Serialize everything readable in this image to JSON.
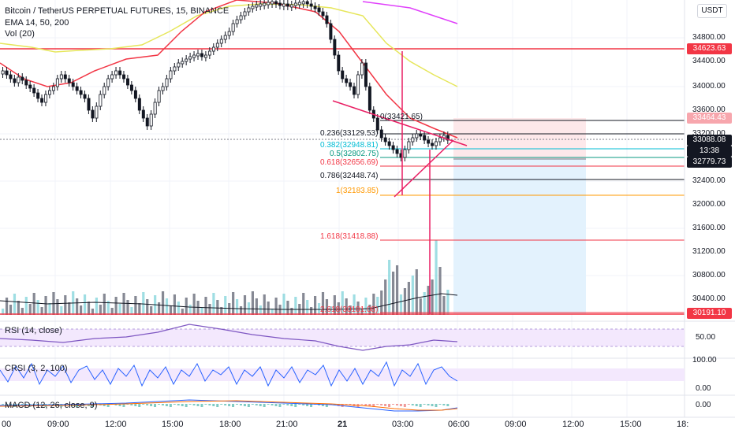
{
  "header": {
    "title": "Bitcoin / TetherUS PERPETUAL FUTURES, 15, BINANCE",
    "ema_label": "EMA 14, 50, 200",
    "vol_label": "Vol (20)",
    "currency_button": "USDT"
  },
  "price_axis": {
    "ticks": [
      "34800.00",
      "34400.00",
      "34000.00",
      "33600.00",
      "33200.00",
      "32800.00",
      "32400.00",
      "32000.00",
      "31600.00",
      "31200.00",
      "30800.00",
      "30400.00"
    ],
    "tags": [
      {
        "label": "34623.63",
        "color": "#f23645"
      },
      {
        "label": "33464.43",
        "color": "#f7a6ad"
      },
      {
        "label": "33088.08",
        "color": "#131722"
      },
      {
        "label": "13:38",
        "color": "#131722"
      },
      {
        "label": "32779.73",
        "color": "#131722"
      },
      {
        "label": "30191.10",
        "color": "#f23645"
      }
    ]
  },
  "fib_levels": [
    {
      "label": "0(33421.65)",
      "color": "#131722"
    },
    {
      "label": "0.236(33129.53)",
      "color": "#131722"
    },
    {
      "label": "0.382(32948.81)",
      "color": "#00bcd4"
    },
    {
      "label": "0.5(32802.75)",
      "color": "#089981"
    },
    {
      "label": "0.618(32656.69)",
      "color": "#f23645"
    },
    {
      "label": "0.786(32448.74)",
      "color": "#131722"
    },
    {
      "label": "1(32183.85)",
      "color": "#ff9800"
    },
    {
      "label": "1.618(31418.88)",
      "color": "#f23645"
    },
    {
      "label": "2.618(30181.08)",
      "color": "#f23645"
    }
  ],
  "panes": {
    "rsi": {
      "label": "RSI (14, close)",
      "ticks": [
        "50.00"
      ]
    },
    "crsi": {
      "label": "CRSI (3, 2, 100)",
      "ticks": [
        "100.00",
        "0.00"
      ]
    },
    "macd": {
      "label": "MACD (12, 26, close, 9)",
      "ticks": [
        "0.00"
      ]
    }
  },
  "time_axis": {
    "ticks": [
      "00",
      "09:00",
      "12:00",
      "15:00",
      "18:00",
      "21:00",
      "21",
      "03:00",
      "06:00",
      "09:00",
      "12:00",
      "15:00",
      "18:"
    ]
  },
  "colors": {
    "up": "#26a69a",
    "down": "#131722",
    "ema14": "#f23645",
    "ema50": "#e6e65a",
    "ema200": "#e040fb",
    "fib_fill": "#e3f2fd",
    "stop_fill": "#fde8ea"
  }
}
